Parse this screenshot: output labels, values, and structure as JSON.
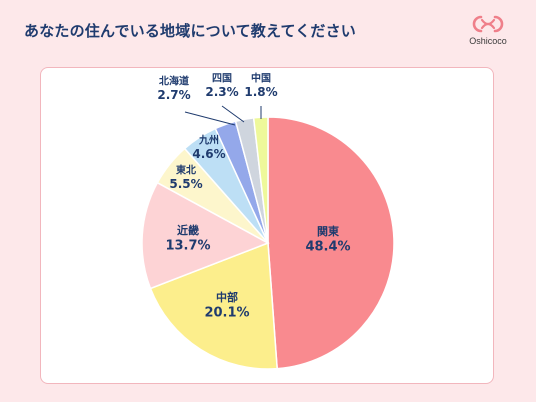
{
  "title": "あなたの住んでいる地域について教えてください",
  "logo": {
    "text": "Oshicoco",
    "icon": "oshicoco-logo-icon",
    "color": "#ef7f8a"
  },
  "chart_data": {
    "type": "pie",
    "start_angle_deg": 0,
    "direction": "clockwise",
    "slices": [
      {
        "label": "関東",
        "value": 48.4,
        "value_text": "48.4%",
        "color": "#f98a8f"
      },
      {
        "label": "中部",
        "value": 20.1,
        "value_text": "20.1%",
        "color": "#fcee8c"
      },
      {
        "label": "近畿",
        "value": 13.7,
        "value_text": "13.7%",
        "color": "#fdd3d5"
      },
      {
        "label": "東北",
        "value": 5.5,
        "value_text": "5.5%",
        "color": "#fdf6cc"
      },
      {
        "label": "九州",
        "value": 4.6,
        "value_text": "4.6%",
        "color": "#bddff5"
      },
      {
        "label": "北海道",
        "value": 2.7,
        "value_text": "2.7%",
        "color": "#94a8ea"
      },
      {
        "label": "四国",
        "value": 2.3,
        "value_text": "2.3%",
        "color": "#cfd5de"
      },
      {
        "label": "中国",
        "value": 1.8,
        "value_text": "1.8%",
        "color": "#eef89a"
      }
    ],
    "label_color": "#1f3b6e"
  }
}
